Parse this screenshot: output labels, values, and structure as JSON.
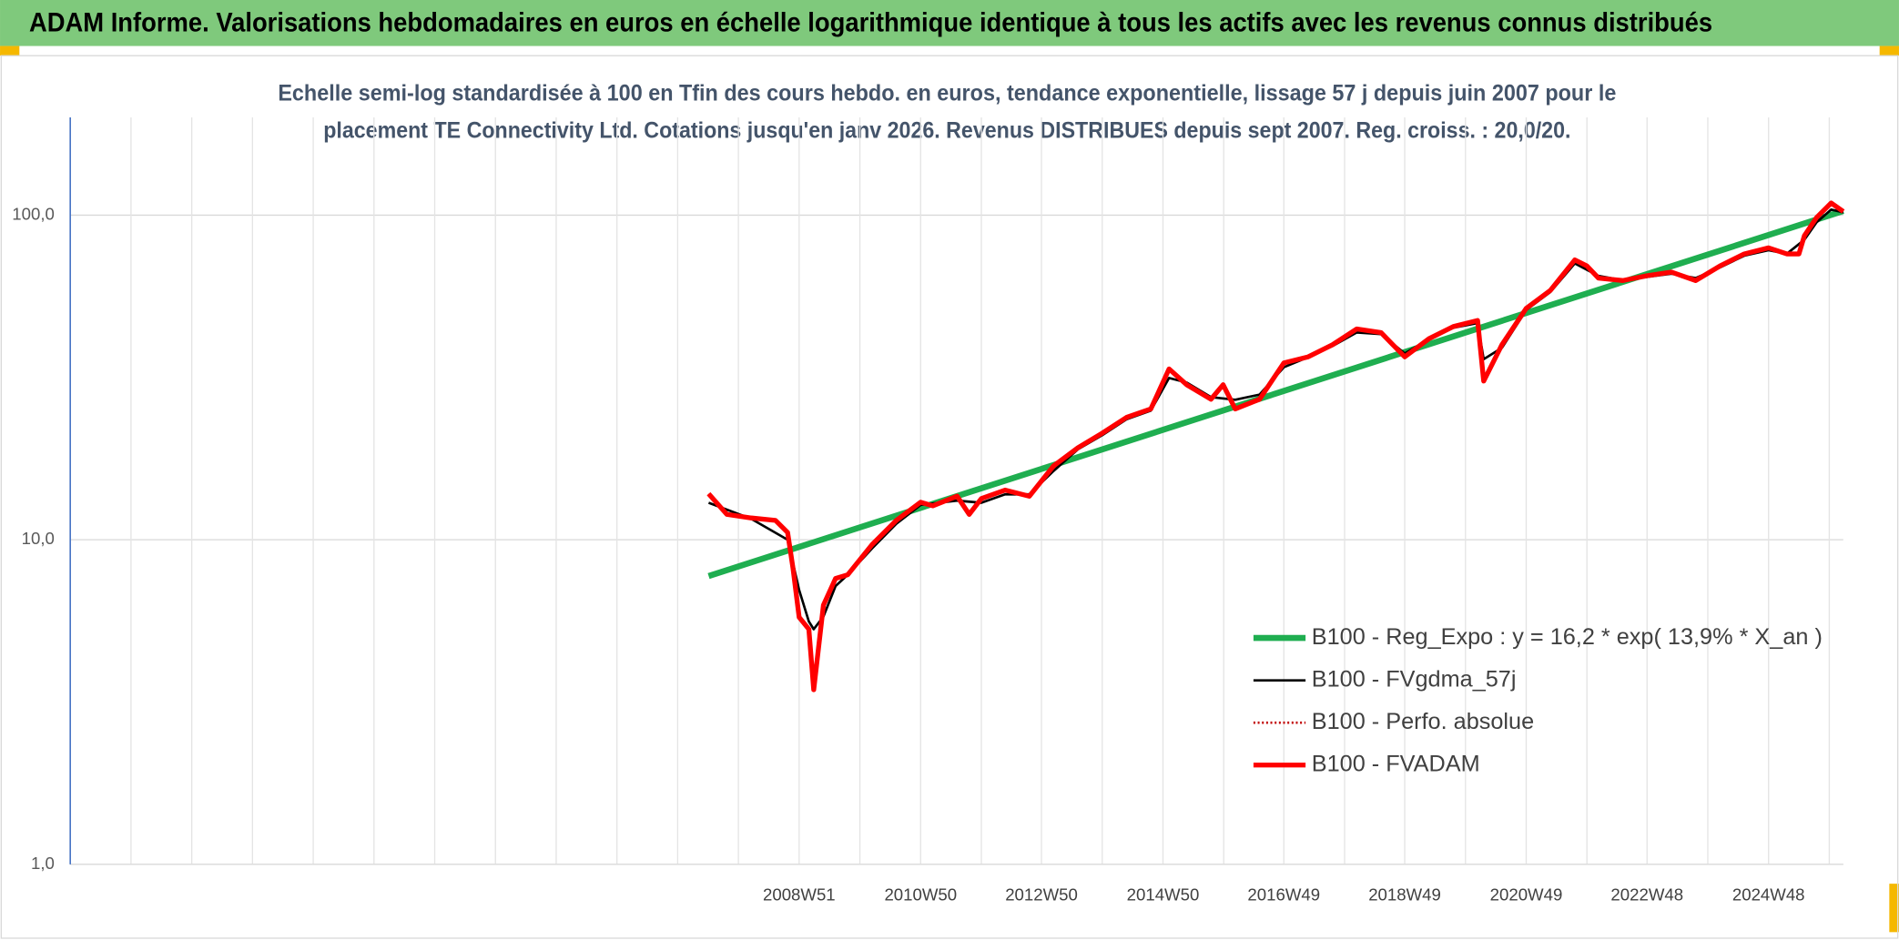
{
  "chart_data": {
    "type": "line",
    "title": "ADAM Informe. Valorisations hebdomadaires en euros en échelle logarithmique identique à tous les actifs avec les revenus connus distribués",
    "subtitle": [
      "Echelle semi-log standardisée à 100 en Tfin des cours hebdo. en euros, tendance exponentielle, lissage 57 j depuis juin 2007 pour le",
      "placement TE Connectivity Ltd. Cotations jusqu'en janv 2026. Revenus DISTRIBUES depuis sept 2007. Reg. croiss. : 20,0/20."
    ],
    "log_y": true,
    "grid": true,
    "legend": "lower right",
    "xlim": [
      1996.96,
      2026.15
    ],
    "xticks": [
      {
        "value": 2008.96,
        "label": "2008W51"
      },
      {
        "value": 2010.96,
        "label": "2010W50"
      },
      {
        "value": 2012.95,
        "label": "2012W50"
      },
      {
        "value": 2014.95,
        "label": "2014W50"
      },
      {
        "value": 2016.94,
        "label": "2016W49"
      },
      {
        "value": 2018.93,
        "label": "2018W49"
      },
      {
        "value": 2020.93,
        "label": "2020W49"
      },
      {
        "value": 2022.92,
        "label": "2022W48"
      },
      {
        "value": 2024.92,
        "label": "2024W48"
      }
    ],
    "ylim": [
      1,
      200
    ],
    "yticks": [
      {
        "value": 1,
        "label": "1,0"
      },
      {
        "value": 10,
        "label": "10,0"
      },
      {
        "value": 100,
        "label": "100,0"
      }
    ],
    "series": [
      {
        "name": "B100 - Reg_Expo : y = 16,2 * exp( 13,9% *  X_an )",
        "color": "#1fae50",
        "style": "solid",
        "width": 5,
        "x": [
          2007.47,
          2026.15
        ],
        "values": [
          7.73,
          103
        ]
      },
      {
        "name": "B100 - FVgdma_57j",
        "color": "#000000",
        "style": "solid",
        "width": 2,
        "x": [
          2007.47,
          2008.17,
          2008.77,
          2008.96,
          2009.12,
          2009.2,
          2009.36,
          2009.56,
          2009.76,
          2010.16,
          2010.56,
          2010.96,
          2011.56,
          2011.96,
          2012.35,
          2012.75,
          2013.15,
          2013.55,
          2013.95,
          2014.35,
          2014.75,
          2015.05,
          2015.34,
          2015.74,
          2016.14,
          2016.54,
          2016.94,
          2017.34,
          2017.74,
          2018.14,
          2018.54,
          2018.93,
          2019.33,
          2019.73,
          2020.13,
          2020.23,
          2020.53,
          2020.93,
          2021.33,
          2021.73,
          2022.12,
          2022.52,
          2022.92,
          2023.32,
          2023.72,
          2024.12,
          2024.52,
          2024.92,
          2025.22,
          2025.51,
          2025.71,
          2025.95,
          2026.15
        ],
        "values": [
          13.0,
          11.6,
          10.0,
          7.0,
          5.6,
          5.3,
          5.8,
          7.2,
          7.8,
          9.4,
          11.2,
          12.8,
          13.2,
          13.0,
          13.8,
          13.8,
          16.3,
          19.0,
          21.0,
          23.5,
          25.0,
          31.5,
          30.5,
          27.5,
          27.0,
          28.0,
          34.0,
          36.5,
          39.5,
          43.5,
          43.0,
          37.5,
          41.5,
          45.0,
          46.5,
          36.0,
          39.0,
          51.0,
          58.0,
          71.0,
          65.0,
          63.0,
          64.5,
          66.0,
          64.0,
          69.0,
          75.0,
          78.0,
          76.0,
          84.0,
          95.0,
          104.0,
          102.0
        ]
      },
      {
        "name": "B100 - Perfo. absolue",
        "color": "#c00000",
        "style": "dotted",
        "width": 2,
        "x": [
          2007.47,
          2007.77,
          2008.17,
          2008.57,
          2008.77,
          2008.86,
          2008.96,
          2009.12,
          2009.2,
          2009.36,
          2009.56,
          2009.76,
          2010.16,
          2010.56,
          2010.96,
          2011.16,
          2011.56,
          2011.76,
          2011.96,
          2012.35,
          2012.75,
          2013.15,
          2013.55,
          2013.95,
          2014.35,
          2014.75,
          2015.05,
          2015.34,
          2015.74,
          2015.94,
          2016.14,
          2016.54,
          2016.94,
          2017.34,
          2017.74,
          2018.14,
          2018.54,
          2018.93,
          2019.33,
          2019.73,
          2020.13,
          2020.23,
          2020.53,
          2020.93,
          2021.33,
          2021.73,
          2021.93,
          2022.12,
          2022.52,
          2022.92,
          2023.32,
          2023.72,
          2024.12,
          2024.52,
          2024.92,
          2025.22,
          2025.42,
          2025.51,
          2025.71,
          2025.95,
          2026.15
        ],
        "values": [
          13.86,
          11.97,
          11.67,
          11.47,
          10.53,
          8.14,
          5.77,
          5.3,
          3.45,
          6.29,
          7.6,
          7.8,
          9.66,
          11.47,
          13.05,
          12.72,
          13.62,
          11.97,
          13.39,
          14.22,
          13.62,
          16.89,
          19.21,
          21.3,
          23.82,
          25.29,
          33.59,
          30.03,
          27.09,
          30.03,
          25.29,
          27.09,
          35.06,
          36.59,
          39.87,
          44.59,
          43.46,
          36.59,
          41.63,
          45.37,
          47.36,
          30.82,
          39.87,
          51.61,
          58.7,
          72.78,
          69.72,
          63.97,
          62.87,
          65.08,
          66.79,
          62.87,
          69.72,
          75.95,
          79.3,
          75.95,
          75.95,
          86.42,
          98.3,
          109.0,
          102.6
        ]
      },
      {
        "name": "B100 - FVADAM",
        "color": "#ff0000",
        "style": "solid",
        "width": 4,
        "x": [
          2007.47,
          2007.77,
          2008.17,
          2008.57,
          2008.77,
          2008.86,
          2008.96,
          2009.12,
          2009.2,
          2009.36,
          2009.56,
          2009.76,
          2010.16,
          2010.56,
          2010.96,
          2011.16,
          2011.56,
          2011.76,
          2011.96,
          2012.35,
          2012.75,
          2013.15,
          2013.55,
          2013.95,
          2014.35,
          2014.75,
          2015.05,
          2015.34,
          2015.74,
          2015.94,
          2016.14,
          2016.54,
          2016.94,
          2017.34,
          2017.74,
          2018.14,
          2018.54,
          2018.93,
          2019.33,
          2019.73,
          2020.13,
          2020.23,
          2020.53,
          2020.93,
          2021.33,
          2021.73,
          2021.93,
          2022.12,
          2022.52,
          2022.92,
          2023.32,
          2023.72,
          2024.12,
          2024.52,
          2024.92,
          2025.22,
          2025.42,
          2025.51,
          2025.71,
          2025.95,
          2026.15
        ],
        "values": [
          13.86,
          11.97,
          11.67,
          11.47,
          10.53,
          8.14,
          5.77,
          5.3,
          3.45,
          6.29,
          7.6,
          7.8,
          9.66,
          11.47,
          13.05,
          12.72,
          13.62,
          11.97,
          13.39,
          14.22,
          13.62,
          16.89,
          19.21,
          21.3,
          23.82,
          25.29,
          33.59,
          30.03,
          27.09,
          30.03,
          25.29,
          27.09,
          35.06,
          36.59,
          39.87,
          44.59,
          43.46,
          36.59,
          41.63,
          45.37,
          47.36,
          30.82,
          39.87,
          51.61,
          58.7,
          72.78,
          69.72,
          63.97,
          62.87,
          65.08,
          66.79,
          62.87,
          69.72,
          75.95,
          79.3,
          75.95,
          75.95,
          86.42,
          98.3,
          109.0,
          102.6
        ]
      }
    ]
  }
}
